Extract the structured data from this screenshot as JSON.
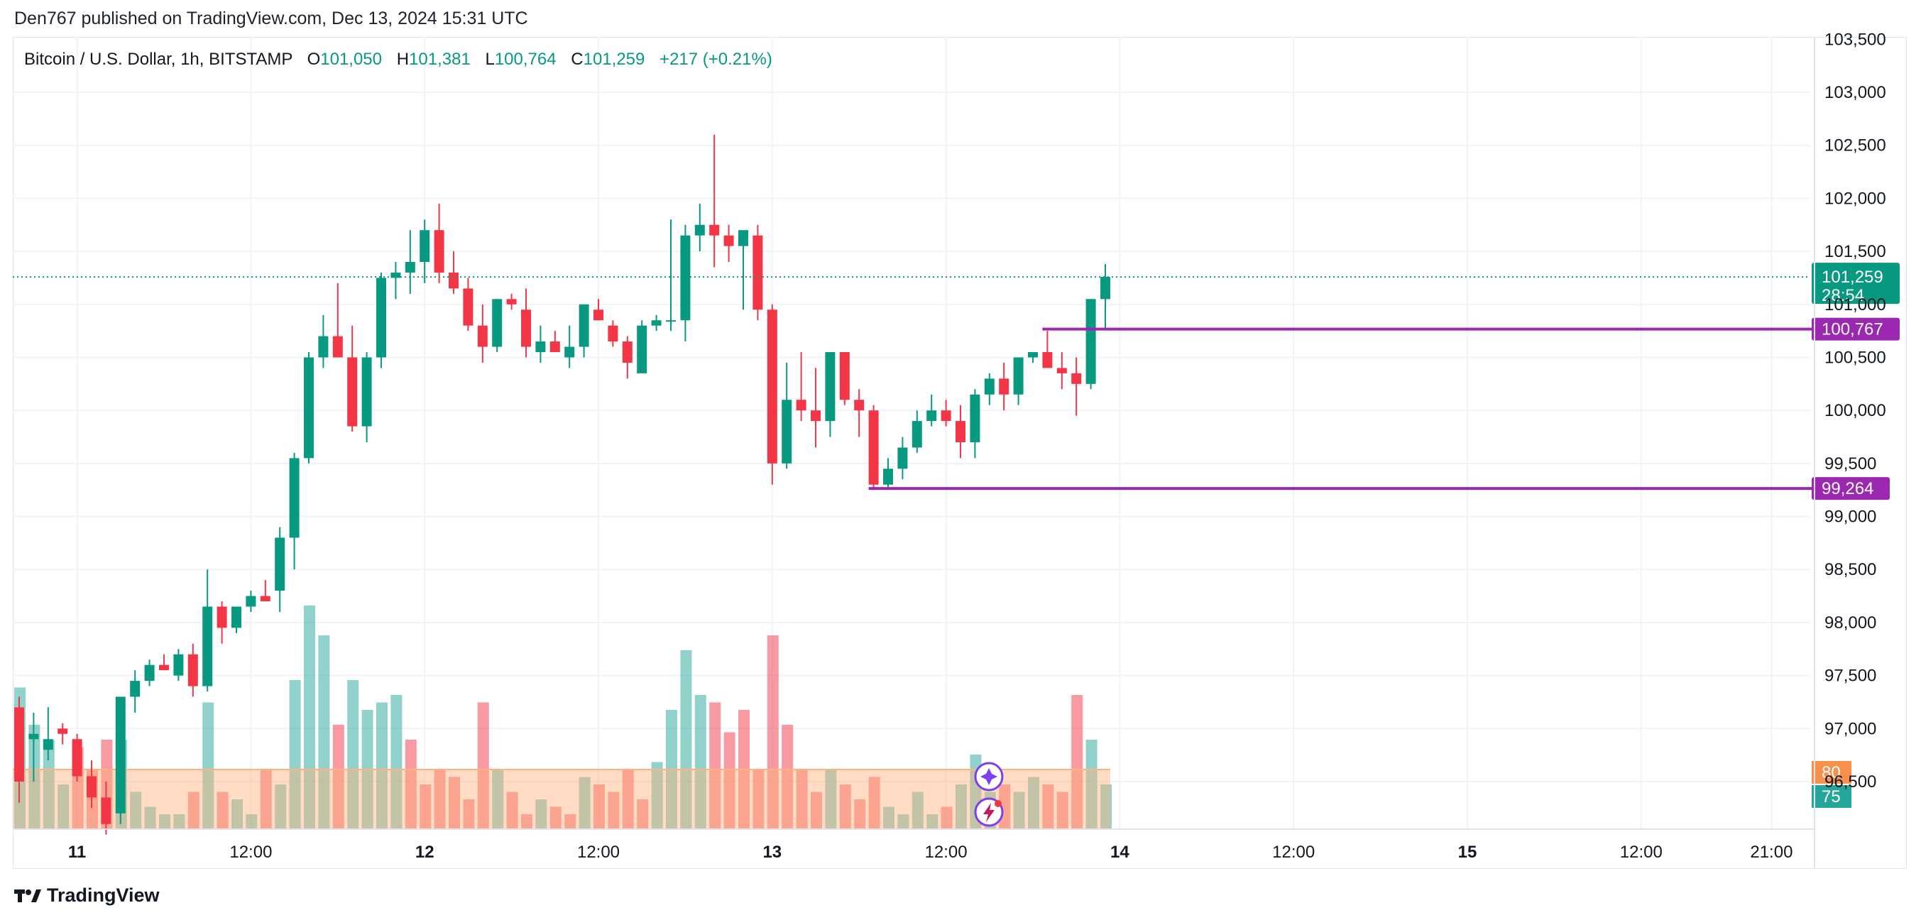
{
  "caption": "Den767 published on TradingView.com, Dec 13, 2024 15:31 UTC",
  "legend": {
    "symbol": "Bitcoin / U.S. Dollar, 1h, BITSTAMP",
    "o_label": "O",
    "o": "101,050",
    "h_label": "H",
    "h": "101,381",
    "l_label": "L",
    "l": "100,764",
    "c_label": "C",
    "c": "101,259",
    "change": "+217 (+0.21%)"
  },
  "footer": {
    "brand": "TradingView"
  },
  "colors": {
    "up": "#089981",
    "down": "#f23645",
    "level": "#9c27b0",
    "volume_ma": "#ffb27a",
    "badge_orange": "#f7904a",
    "badge_teal": "#26a69a"
  },
  "icons": [
    "sparkle-icon",
    "lightning-icon"
  ],
  "chart_data": {
    "type": "candlestick",
    "title": "Bitcoin / U.S. Dollar, 1h, BITSTAMP",
    "ylim": [
      96400,
      103500
    ],
    "y_ticks": [
      "103,000",
      "102,500",
      "102,000",
      "101,500",
      "101,000",
      "100,500",
      "100,000",
      "99,500",
      "99,000",
      "98,500",
      "98,000",
      "97,500",
      "97,000",
      "96,500"
    ],
    "y_tick_values": [
      103000,
      102500,
      102000,
      101500,
      101000,
      100500,
      100000,
      99500,
      99000,
      98500,
      98000,
      97500,
      97000,
      96500
    ],
    "y_top_partial": "103,500",
    "x_ticks": [
      {
        "label": "11",
        "bar": 4,
        "bold": true
      },
      {
        "label": "12:00",
        "bar": 16,
        "bold": false
      },
      {
        "label": "12",
        "bar": 28,
        "bold": true
      },
      {
        "label": "12:00",
        "bar": 40,
        "bold": false
      },
      {
        "label": "13",
        "bar": 52,
        "bold": true
      },
      {
        "label": "12:00",
        "bar": 64,
        "bold": false
      },
      {
        "label": "14",
        "bar": 76,
        "bold": true
      },
      {
        "label": "12:00",
        "bar": 88,
        "bold": false
      },
      {
        "label": "15",
        "bar": 100,
        "bold": true
      },
      {
        "label": "12:00",
        "bar": 112,
        "bold": false
      },
      {
        "label": "21:00",
        "bar": 121,
        "bold": false
      }
    ],
    "candles": [
      [
        97200,
        97300,
        96300,
        96500
      ],
      [
        96900,
        97150,
        96500,
        96950
      ],
      [
        96800,
        97200,
        96700,
        96900
      ],
      [
        97000,
        97050,
        96850,
        96950
      ],
      [
        96900,
        96950,
        96500,
        96550
      ],
      [
        96550,
        96700,
        96250,
        96350
      ],
      [
        96350,
        96500,
        96000,
        96100
      ],
      [
        96200,
        97300,
        96100,
        97300
      ],
      [
        97300,
        97550,
        97150,
        97450
      ],
      [
        97450,
        97650,
        97400,
        97600
      ],
      [
        97600,
        97700,
        97550,
        97550
      ],
      [
        97500,
        97750,
        97450,
        97700
      ],
      [
        97700,
        97800,
        97300,
        97400
      ],
      [
        97400,
        98500,
        97350,
        98150
      ],
      [
        98150,
        98200,
        97800,
        97950
      ],
      [
        97950,
        98150,
        97900,
        98150
      ],
      [
        98150,
        98300,
        98100,
        98250
      ],
      [
        98250,
        98400,
        98200,
        98200
      ],
      [
        98300,
        98900,
        98100,
        98800
      ],
      [
        98800,
        99600,
        98500,
        99550
      ],
      [
        99550,
        100550,
        99500,
        100500
      ],
      [
        100500,
        100900,
        100400,
        100700
      ],
      [
        100700,
        101200,
        100500,
        100500
      ],
      [
        100500,
        100800,
        99800,
        99850
      ],
      [
        99850,
        100550,
        99700,
        100500
      ],
      [
        100500,
        101300,
        100400,
        101250
      ],
      [
        101250,
        101400,
        101050,
        101300
      ],
      [
        101300,
        101700,
        101100,
        101400
      ],
      [
        101400,
        101800,
        101200,
        101700
      ],
      [
        101700,
        101950,
        101200,
        101300
      ],
      [
        101300,
        101500,
        101100,
        101150
      ],
      [
        101150,
        101250,
        100750,
        100800
      ],
      [
        100800,
        101000,
        100450,
        100600
      ],
      [
        100600,
        101050,
        100550,
        101050
      ],
      [
        101050,
        101100,
        100950,
        101000
      ],
      [
        100950,
        101150,
        100500,
        100600
      ],
      [
        100550,
        100800,
        100450,
        100650
      ],
      [
        100650,
        100750,
        100550,
        100550
      ],
      [
        100500,
        100800,
        100400,
        100600
      ],
      [
        100600,
        101000,
        100500,
        101000
      ],
      [
        100950,
        101050,
        100850,
        100850
      ],
      [
        100800,
        100850,
        100600,
        100650
      ],
      [
        100650,
        100700,
        100300,
        100450
      ],
      [
        100350,
        100850,
        100350,
        100800
      ],
      [
        100800,
        100900,
        100750,
        100850
      ],
      [
        100850,
        101800,
        100750,
        100850
      ],
      [
        100850,
        101750,
        100650,
        101650
      ],
      [
        101650,
        101950,
        101500,
        101750
      ],
      [
        101750,
        102600,
        101350,
        101650
      ],
      [
        101650,
        101750,
        101400,
        101550
      ],
      [
        101550,
        101650,
        100950,
        101700
      ],
      [
        101650,
        101750,
        100850,
        100950
      ],
      [
        100950,
        101000,
        99300,
        99500
      ],
      [
        99500,
        100450,
        99450,
        100100
      ],
      [
        100100,
        100550,
        99900,
        100000
      ],
      [
        100000,
        100400,
        99650,
        99900
      ],
      [
        99900,
        100550,
        99750,
        100550
      ],
      [
        100550,
        100550,
        100050,
        100100
      ],
      [
        100100,
        100200,
        99750,
        100000
      ],
      [
        100000,
        100050,
        99250,
        99300
      ],
      [
        99300,
        99550,
        99250,
        99450
      ],
      [
        99450,
        99750,
        99350,
        99650
      ],
      [
        99650,
        100000,
        99600,
        99900
      ],
      [
        99900,
        100150,
        99850,
        100000
      ],
      [
        100000,
        100100,
        99850,
        99900
      ],
      [
        99900,
        100050,
        99550,
        99700
      ],
      [
        99700,
        100200,
        99550,
        100150
      ],
      [
        100150,
        100350,
        100050,
        100300
      ],
      [
        100300,
        100450,
        100000,
        100150
      ],
      [
        100150,
        100500,
        100050,
        100500
      ],
      [
        100500,
        100550,
        100450,
        100550
      ],
      [
        100550,
        100750,
        100450,
        100400
      ],
      [
        100400,
        100550,
        100200,
        100350
      ],
      [
        100350,
        100500,
        99950,
        100250
      ],
      [
        100250,
        101050,
        100200,
        101050
      ],
      [
        101050,
        101381,
        100764,
        101259
      ]
    ],
    "volume": [
      [
        95,
        "up"
      ],
      [
        70,
        "up"
      ],
      [
        60,
        "up"
      ],
      [
        30,
        "up"
      ],
      [
        55,
        "down"
      ],
      [
        40,
        "down"
      ],
      [
        60,
        "down"
      ],
      [
        60,
        "up"
      ],
      [
        25,
        "up"
      ],
      [
        15,
        "up"
      ],
      [
        10,
        "up"
      ],
      [
        10,
        "up"
      ],
      [
        25,
        "down"
      ],
      [
        85,
        "up"
      ],
      [
        25,
        "down"
      ],
      [
        20,
        "up"
      ],
      [
        10,
        "up"
      ],
      [
        40,
        "down"
      ],
      [
        30,
        "up"
      ],
      [
        100,
        "up"
      ],
      [
        150,
        "up"
      ],
      [
        130,
        "up"
      ],
      [
        70,
        "down"
      ],
      [
        100,
        "up"
      ],
      [
        80,
        "up"
      ],
      [
        85,
        "up"
      ],
      [
        90,
        "up"
      ],
      [
        60,
        "down"
      ],
      [
        30,
        "down"
      ],
      [
        40,
        "down"
      ],
      [
        35,
        "down"
      ],
      [
        20,
        "down"
      ],
      [
        85,
        "down"
      ],
      [
        40,
        "up"
      ],
      [
        25,
        "down"
      ],
      [
        10,
        "down"
      ],
      [
        20,
        "up"
      ],
      [
        15,
        "down"
      ],
      [
        10,
        "down"
      ],
      [
        35,
        "up"
      ],
      [
        30,
        "down"
      ],
      [
        25,
        "down"
      ],
      [
        40,
        "down"
      ],
      [
        20,
        "down"
      ],
      [
        45,
        "up"
      ],
      [
        80,
        "up"
      ],
      [
        120,
        "up"
      ],
      [
        90,
        "up"
      ],
      [
        85,
        "down"
      ],
      [
        65,
        "down"
      ],
      [
        80,
        "down"
      ],
      [
        40,
        "down"
      ],
      [
        130,
        "down"
      ],
      [
        70,
        "down"
      ],
      [
        40,
        "down"
      ],
      [
        25,
        "down"
      ],
      [
        40,
        "up"
      ],
      [
        30,
        "down"
      ],
      [
        20,
        "down"
      ],
      [
        35,
        "down"
      ],
      [
        15,
        "up"
      ],
      [
        10,
        "up"
      ],
      [
        25,
        "up"
      ],
      [
        10,
        "up"
      ],
      [
        15,
        "down"
      ],
      [
        30,
        "up"
      ],
      [
        50,
        "up"
      ],
      [
        25,
        "up"
      ],
      [
        30,
        "down"
      ],
      [
        25,
        "up"
      ],
      [
        35,
        "up"
      ],
      [
        30,
        "down"
      ],
      [
        25,
        "down"
      ],
      [
        90,
        "down"
      ],
      [
        60,
        "up"
      ],
      [
        30,
        "up"
      ]
    ],
    "current_price": {
      "value": 101259,
      "label": "101,259",
      "timer": "28:54"
    },
    "levels": [
      {
        "value": 100767,
        "label": "100,767",
        "start_bar": 71
      },
      {
        "value": 99264,
        "label": "99,264",
        "start_bar": 59
      }
    ],
    "badges": [
      {
        "label": "80"
      },
      {
        "label": "75"
      }
    ]
  }
}
